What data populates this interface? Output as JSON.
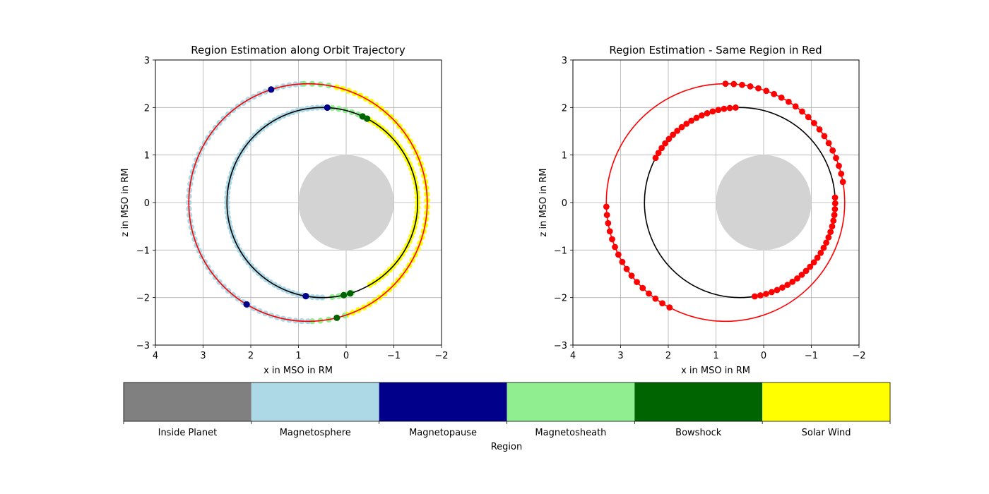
{
  "chart_data": [
    {
      "type": "scatter",
      "title": "Region Estimation along Orbit Trajectory",
      "xlabel": "x in MSO in RM",
      "ylabel": "z in MSO in RM",
      "xlim": [
        4,
        -2
      ],
      "ylim": [
        -3,
        3
      ],
      "xticks": [
        "4",
        "3",
        "2",
        "1",
        "0",
        "−1",
        "−2"
      ],
      "yticks": [
        "−3",
        "−2",
        "−1",
        "0",
        "1",
        "2",
        "3"
      ],
      "grid": true,
      "planet": {
        "center": [
          0,
          0
        ],
        "radius": 1,
        "color": "#d3d3d3"
      },
      "orbits": [
        {
          "name": "outer",
          "center": [
            0.8,
            0
          ],
          "radius": 2.5,
          "color": "#ff0000"
        },
        {
          "name": "inner",
          "center": [
            0.5,
            0
          ],
          "radius": 2.0,
          "color": "#000000"
        }
      ],
      "segments": [
        {
          "orbit": "outer",
          "from_deg": 15,
          "to_deg": 88,
          "step": 3,
          "region": "Magnetosphere"
        },
        {
          "orbit": "outer",
          "from_deg": 88,
          "to_deg": 104,
          "step": 4,
          "region": "Magnetosheath"
        },
        {
          "orbit": "outer",
          "from_deg": 104,
          "to_deg": 252,
          "step": 3,
          "region": "Solar Wind"
        },
        {
          "orbit": "outer",
          "from_deg": 252,
          "to_deg": 270,
          "step": 4,
          "region": "Magnetosheath"
        },
        {
          "orbit": "outer",
          "from_deg": 270,
          "to_deg": 345,
          "step": 3,
          "region": "Magnetosphere"
        },
        {
          "orbit": "outer",
          "from_deg": -15,
          "to_deg": 15,
          "step": 3,
          "region": "Magnetosphere"
        },
        {
          "orbit": "inner",
          "from_deg": 0,
          "to_deg": 93,
          "step": 3,
          "region": "Magnetosphere"
        },
        {
          "orbit": "inner",
          "from_deg": 96,
          "to_deg": 112,
          "step": 4,
          "region": "Magnetosheath"
        },
        {
          "orbit": "inner",
          "from_deg": 120,
          "to_deg": 240,
          "step": 3,
          "region": "Solar Wind"
        },
        {
          "orbit": "inner",
          "from_deg": 252,
          "to_deg": 266,
          "step": 4,
          "region": "Magnetosheath"
        },
        {
          "orbit": "inner",
          "from_deg": 270,
          "to_deg": 360,
          "step": 3,
          "region": "Magnetosphere"
        }
      ],
      "markers": [
        {
          "orbit": "outer",
          "deg": 72,
          "region": "Magnetopause"
        },
        {
          "orbit": "outer",
          "deg": 301,
          "region": "Magnetopause"
        },
        {
          "orbit": "outer",
          "deg": 256,
          "region": "Bowshock"
        },
        {
          "orbit": "inner",
          "deg": 93,
          "region": "Magnetopause"
        },
        {
          "orbit": "inner",
          "deg": 280,
          "region": "Magnetopause"
        },
        {
          "orbit": "inner",
          "deg": 115,
          "region": "Bowshock"
        },
        {
          "orbit": "inner",
          "deg": 118,
          "region": "Bowshock"
        },
        {
          "orbit": "inner",
          "deg": 253,
          "region": "Bowshock"
        },
        {
          "orbit": "inner",
          "deg": 257,
          "region": "Bowshock"
        }
      ]
    },
    {
      "type": "scatter",
      "title": "Region Estimation - Same Region in Red",
      "xlabel": "x in MSO in RM",
      "ylabel": "z in MSO in RM",
      "xlim": [
        4,
        -2
      ],
      "ylim": [
        -3,
        3
      ],
      "xticks": [
        "4",
        "3",
        "2",
        "1",
        "0",
        "−1",
        "−2"
      ],
      "yticks": [
        "−3",
        "−2",
        "−1",
        "0",
        "1",
        "2",
        "3"
      ],
      "grid": true,
      "planet": {
        "center": [
          0,
          0
        ],
        "radius": 1,
        "color": "#d3d3d3"
      },
      "orbits": [
        {
          "name": "outer",
          "center": [
            0.8,
            0
          ],
          "radius": 2.5,
          "color": "#ff0000"
        },
        {
          "name": "inner",
          "center": [
            0.5,
            0
          ],
          "radius": 2.0,
          "color": "#000000"
        }
      ],
      "same_region_color": "#ff0000",
      "same_region_points": [
        {
          "orbit": "outer",
          "from_deg": 90,
          "to_deg": 170,
          "step": 4
        },
        {
          "orbit": "outer",
          "from_deg": 298,
          "to_deg": 361,
          "step": 4
        },
        {
          "orbit": "inner",
          "from_deg": 28,
          "to_deg": 90,
          "step": 3.5
        },
        {
          "orbit": "inner",
          "from_deg": 177,
          "to_deg": 263,
          "step": 3.5
        }
      ]
    }
  ],
  "colorbar": {
    "label": "Region",
    "categories": [
      {
        "name": "Inside Planet",
        "color": "#808080"
      },
      {
        "name": "Magnetosphere",
        "color": "#add8e6"
      },
      {
        "name": "Magnetopause",
        "color": "#00008b"
      },
      {
        "name": "Magnetosheath",
        "color": "#90ee90"
      },
      {
        "name": "Bowshock",
        "color": "#006400"
      },
      {
        "name": "Solar Wind",
        "color": "#ffff00"
      }
    ]
  }
}
